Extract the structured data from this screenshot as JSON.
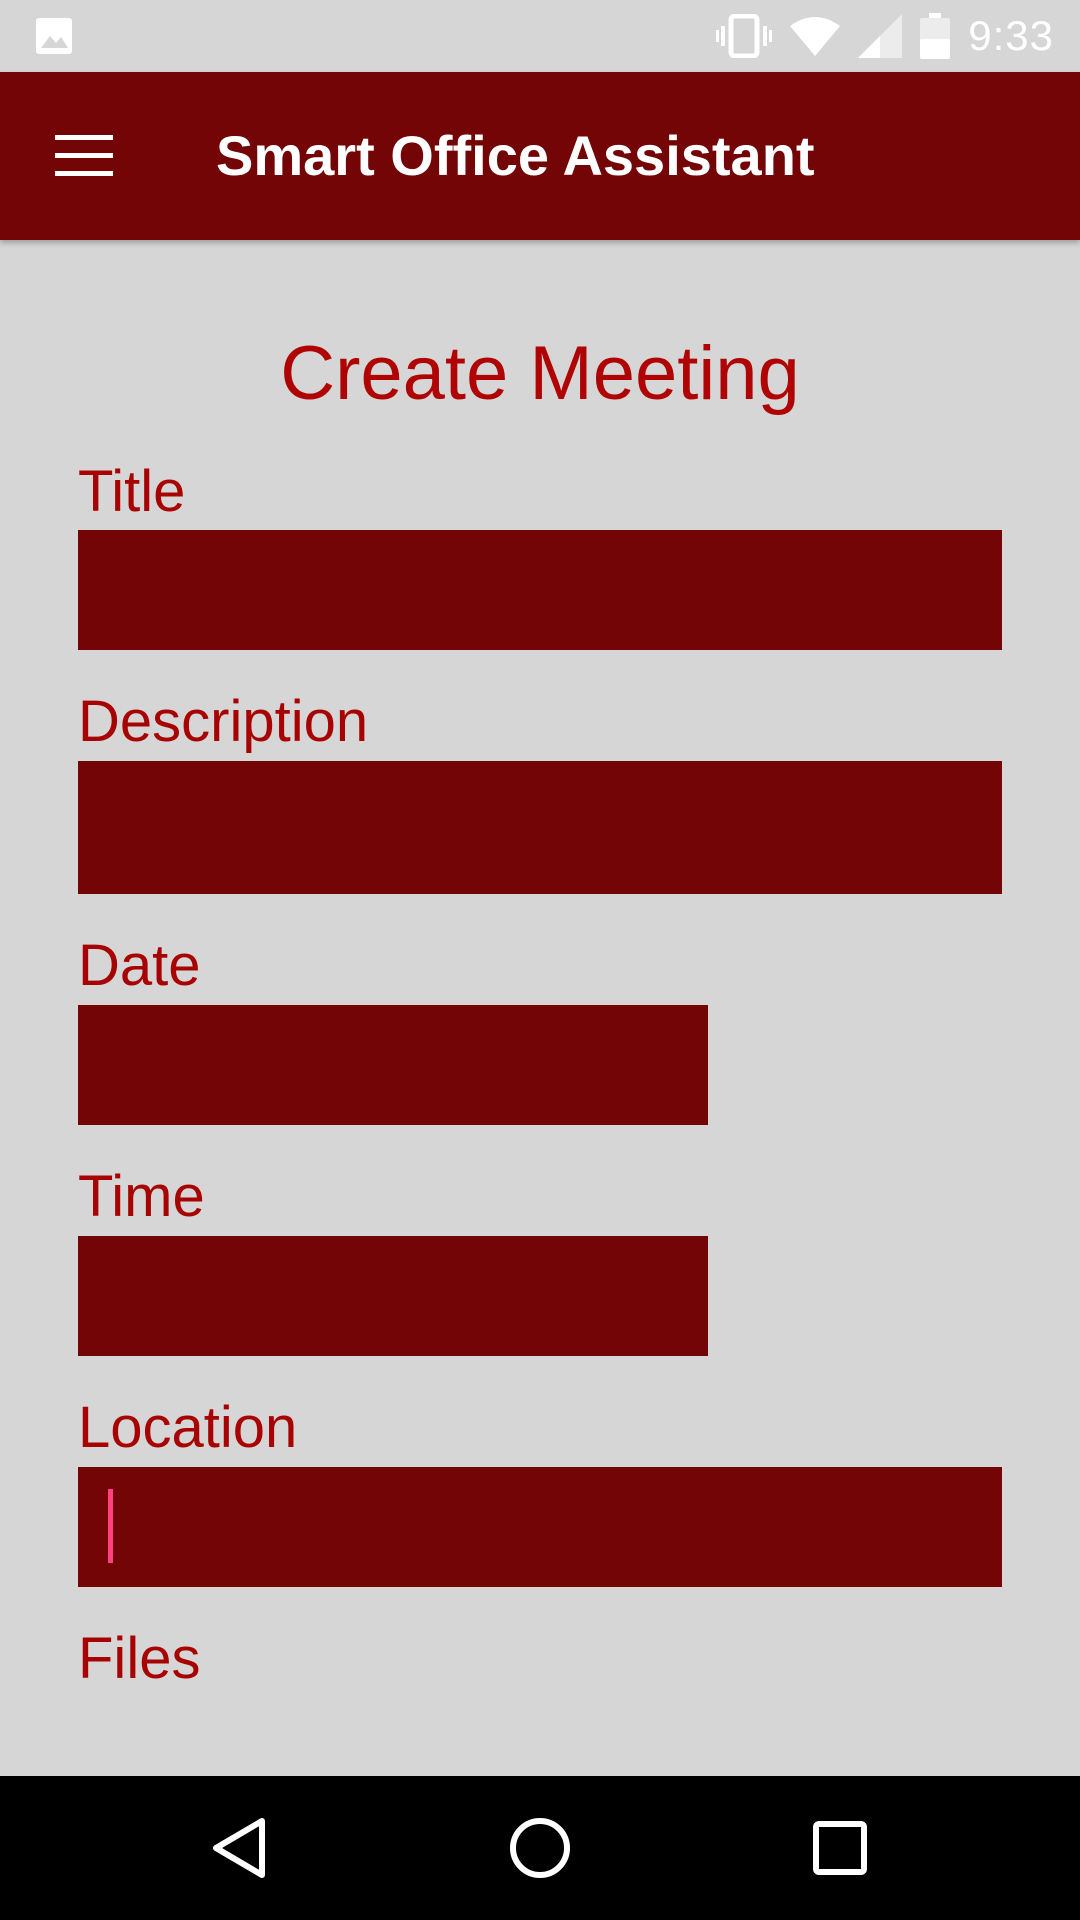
{
  "status_bar": {
    "time": "9:33",
    "icons": [
      "gallery-icon",
      "vibrate-icon",
      "wifi-icon",
      "cell-signal-icon",
      "battery-icon"
    ]
  },
  "app_bar": {
    "title": "Smart Office Assistant",
    "menu_icon": "hamburger-menu-icon"
  },
  "form": {
    "heading": "Create Meeting",
    "fields": {
      "title": {
        "label": "Title",
        "value": ""
      },
      "description": {
        "label": "Description",
        "value": ""
      },
      "date": {
        "label": "Date",
        "value": ""
      },
      "time": {
        "label": "Time",
        "value": ""
      },
      "location": {
        "label": "Location",
        "value": ""
      }
    },
    "files_label": "Files"
  },
  "nav_bar": {
    "icons": [
      "back-icon",
      "home-icon",
      "recents-icon"
    ]
  },
  "colors": {
    "primary": "#730506",
    "accent_text": "#a80303",
    "caret": "#ff4081",
    "background": "#d6d6d6"
  }
}
